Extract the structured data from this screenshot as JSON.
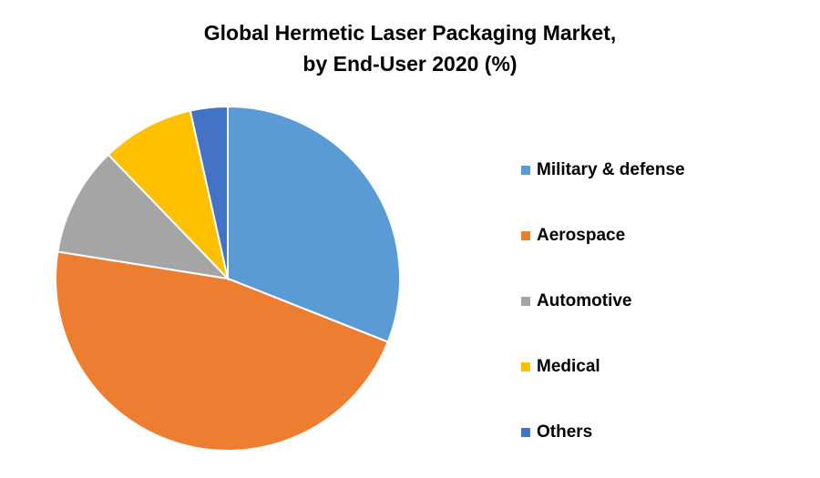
{
  "chart_data": {
    "type": "pie",
    "title": [
      "Global Hermetic Laser Packaging Market,",
      "by End-User 2020 (%)"
    ],
    "categories": [
      "Military & defense",
      "Aerospace",
      "Automotive",
      "Medical",
      "Others"
    ],
    "values": [
      31,
      46.5,
      10.3,
      8.7,
      3.5
    ],
    "colors": [
      "#5b9bd5",
      "#ed7d31",
      "#a5a5a5",
      "#ffc000",
      "#4472c4"
    ],
    "legend": "right"
  }
}
